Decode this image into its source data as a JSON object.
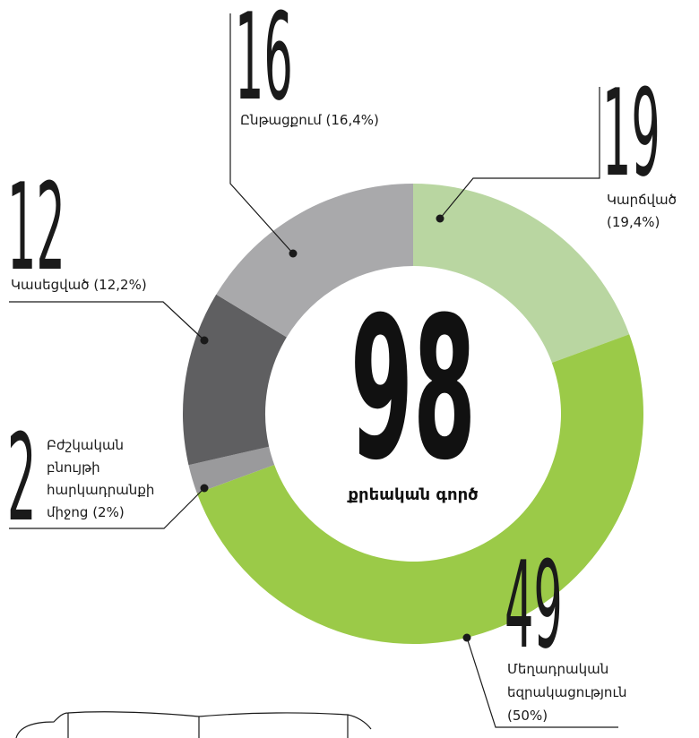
{
  "chart_data": {
    "type": "donut",
    "total": 98,
    "total_label": "քրեական գործ",
    "categories": [
      [
        "Կարճված",
        "(19,4%)"
      ],
      [
        "Մեղադրական",
        "եզրակացություն",
        "(50%)"
      ],
      [
        "Բժշկական",
        "բնույթի",
        "հարկադրանքի",
        "միջոց (2%)"
      ],
      [
        "Կասեցված (12,2%)"
      ],
      [
        "Ընթացքում (16,4%)"
      ]
    ],
    "values": [
      19,
      49,
      2,
      12,
      16
    ],
    "colors": [
      "#b9d6a1",
      "#9bca48",
      "#9a9a9c",
      "#5f5f61",
      "#a9a9ab"
    ]
  }
}
